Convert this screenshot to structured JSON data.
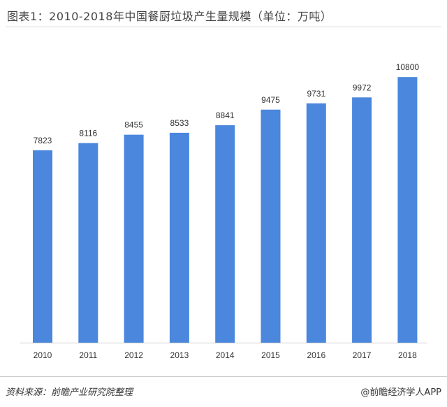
{
  "title": "图表1：2010-2018年中国餐厨垃圾产生量规模（单位：万吨）",
  "source": "资料来源：前瞻产业研究院整理",
  "credit": "@前瞻经济学人APP",
  "colors": {
    "bar": "#4a87dd",
    "axis": "#d0d0d0"
  },
  "chart_data": {
    "type": "bar",
    "title": "图表1：2010-2018年中国餐厨垃圾产生量规模（单位：万吨）",
    "categories": [
      "2010",
      "2011",
      "2012",
      "2013",
      "2014",
      "2015",
      "2016",
      "2017",
      "2018"
    ],
    "values": [
      7823,
      8116,
      8455,
      8533,
      8841,
      9475,
      9731,
      9972,
      10800
    ],
    "data_labels": [
      "7823",
      "8116",
      "8455",
      "8533",
      "8841",
      "9475",
      "9731",
      "9972",
      "10800"
    ],
    "xlabel": "",
    "ylabel": "",
    "ylim": [
      0,
      11800
    ],
    "grid": false,
    "legend": "none"
  }
}
